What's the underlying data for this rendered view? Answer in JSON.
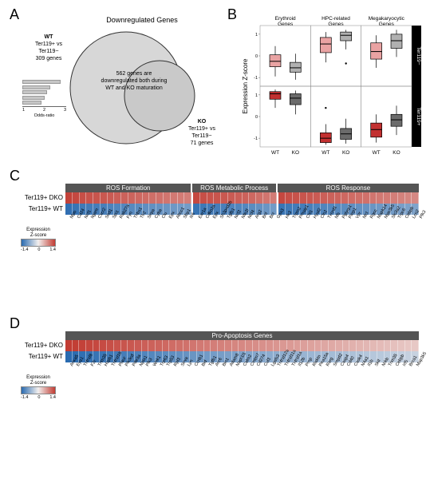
{
  "panelA": {
    "label": "A",
    "title": "Downregulated Genes",
    "left_set": {
      "cond": "WT",
      "comp": "Ter119+ vs\nTer119−",
      "count": "309 genes"
    },
    "right_set": {
      "cond": "KO",
      "comp": "Ter119+ vs\nTer119−",
      "count": "71 genes"
    },
    "intersection": "562 genes\nare downregulated\nboth during WT and KO\nmaturation",
    "odds_label": "Odds-ratio",
    "odds_ticks": [
      "1",
      "2",
      "3"
    ],
    "odds_bars": [
      2.6,
      1.9,
      1.7,
      1.5,
      1.3
    ],
    "venn_fill": "#d7d7d7",
    "bar_fill": "#c6c6c6"
  },
  "panelB": {
    "label": "B",
    "ylab": "Expression Z-score",
    "col_headers": [
      "Erythroid\nGenes",
      "HPC-related\nGenes",
      "Megakaryocytic\nGenes"
    ],
    "row_headers": [
      "Ter119−",
      "Ter119+"
    ],
    "x_ticks": [
      "WT",
      "KO"
    ],
    "y_ticks": [
      "-1",
      "0",
      "1"
    ],
    "colors": {
      "wt_top": "#e9a3a3",
      "ko_top": "#b0b0b0",
      "wt_bot": "#c23030",
      "ko_bot": "#6b6b6b"
    },
    "boxes": [
      [
        {
          "wt": {
            "q1": -0.5,
            "med": -0.25,
            "q3": 0.05,
            "wl": -0.95,
            "wh": 0.45
          },
          "ko": {
            "q1": -0.75,
            "med": -0.55,
            "q3": -0.3,
            "wl": -1.1,
            "wh": 0.1
          }
        },
        {
          "wt": {
            "q1": 0.15,
            "med": 0.55,
            "q3": 0.85,
            "wl": -0.3,
            "wh": 1.1
          },
          "ko": {
            "q1": 0.7,
            "med": 0.95,
            "q3": 1.1,
            "wl": 0.3,
            "wh": 1.2
          }
        },
        {
          "wt": {
            "q1": -0.15,
            "med": 0.2,
            "q3": 0.6,
            "wl": -0.55,
            "wh": 0.95
          },
          "ko": {
            "q1": 0.35,
            "med": 0.7,
            "q3": 1.0,
            "wl": -0.05,
            "wh": 1.2
          }
        }
      ],
      [
        {
          "wt": {
            "q1": 0.8,
            "med": 1.05,
            "q3": 1.15,
            "wl": 0.4,
            "wh": 1.25
          },
          "ko": {
            "q1": 0.55,
            "med": 0.85,
            "q3": 1.05,
            "wl": 0.1,
            "wh": 1.2
          }
        },
        {
          "wt": {
            "q1": -1.2,
            "med": -1.0,
            "q3": -0.75,
            "wl": -1.3,
            "wh": -0.35
          },
          "ko": {
            "q1": -1.05,
            "med": -0.8,
            "q3": -0.55,
            "wl": -1.25,
            "wh": -0.1
          }
        },
        {
          "wt": {
            "q1": -0.95,
            "med": -0.6,
            "q3": -0.3,
            "wl": -1.2,
            "wh": 0.1
          },
          "ko": {
            "q1": -0.45,
            "med": -0.15,
            "q3": 0.1,
            "wl": -0.85,
            "wh": 0.5
          }
        }
      ]
    ],
    "outliers": [
      {
        "row": 1,
        "col": 1,
        "x": "wt",
        "y": 0.4
      },
      {
        "row": 0,
        "col": 1,
        "x": "ko",
        "y": -0.35
      }
    ]
  },
  "panelC": {
    "label": "C",
    "row_labels": [
      "Ter119+ DKO",
      "Ter119+ WT"
    ],
    "sections": [
      {
        "title": "ROS Formation",
        "genes": [
          "Mpo",
          "Cd24",
          "Ncf1",
          "Itgam",
          "Cxcr2",
          "Sod1",
          "Spi1",
          "Rab27a",
          "Fyn",
          "Thbs1",
          "Tlr2",
          "Sirpa",
          "Cyba",
          "Clu",
          "Epx",
          "Abcc1",
          "Sbp1",
          "Ilr6"
        ]
      },
      {
        "title": "ROS Metabolic Process",
        "genes": [
          "Ear1a",
          "Cdkn2a",
          "Epx",
          "Sh3pxd2b",
          "Tgfb1",
          "Ncf2",
          "Nfe2l",
          "Ncf4",
          "Arg2",
          "Bnl",
          "Bcr",
          "Gpx3"
        ]
      },
      {
        "title": "ROS Response",
        "genes": [
          "Hk3",
          "Trpm2",
          "Pmaip1",
          "Chl1",
          "Hyal2",
          "Cln2",
          "Txnrd1",
          "Mb",
          "Pglyrp1",
          "Parp1",
          "Vpr",
          "Mcl",
          "Rgcc",
          "Mapk14",
          "Mpo3k5",
          "Slc3a2",
          "Trpc6",
          "Cebpb",
          "Lcn2",
          "Plk3"
        ]
      }
    ],
    "dko_values": [
      1.35,
      1.3,
      1.25,
      1.22,
      1.2,
      1.18,
      1.15,
      1.12,
      1.1,
      1.08,
      1.05,
      1.02,
      1.0,
      0.98,
      0.95,
      0.92,
      0.9,
      0.88,
      1.3,
      1.25,
      1.22,
      1.2,
      1.18,
      1.15,
      1.12,
      1.1,
      1.05,
      1.0,
      0.95,
      0.9,
      1.3,
      1.25,
      1.22,
      1.2,
      1.18,
      1.15,
      1.12,
      1.1,
      1.08,
      1.05,
      1.02,
      1.0,
      0.98,
      0.95,
      0.92,
      0.9,
      0.88,
      0.85,
      0.82,
      0.8
    ],
    "wt_values": [
      -1.35,
      -1.3,
      -1.25,
      -1.22,
      -1.2,
      -1.18,
      -1.15,
      -1.12,
      -1.1,
      -1.08,
      -1.05,
      -1.02,
      -1.0,
      -0.98,
      -0.95,
      -0.92,
      -0.9,
      -0.88,
      -1.3,
      -1.25,
      -1.22,
      -1.2,
      -1.18,
      -1.15,
      -1.12,
      -1.1,
      -1.05,
      -1.0,
      -0.95,
      -0.9,
      -1.3,
      -1.25,
      -1.22,
      -1.2,
      -1.18,
      -1.15,
      -1.12,
      -1.1,
      -1.08,
      -1.05,
      -1.02,
      -1.0,
      -0.98,
      -0.95,
      -0.92,
      -0.9,
      -0.88,
      -0.85,
      -0.82,
      -0.8
    ],
    "legend": {
      "label": "Expression\nZ-score",
      "min": "-1.4",
      "mid": "0",
      "max": "1.4"
    }
  },
  "panelD": {
    "label": "D",
    "row_labels": [
      "Ter119+ DKO",
      "Ter119+ WT"
    ],
    "header": "Pro-Apoptosis Genes",
    "genes": [
      "Anxa5",
      "Eya1",
      "Tnfrsf8",
      "F2r",
      "Trim35",
      "Hspb1",
      "Tnfrsf1b",
      "Plaur",
      "Pik3cd",
      "Pde3a",
      "Nptx1",
      "Plk3",
      "Wnk1",
      "Trp63",
      "Trp53",
      "Rpl3",
      "Sirva",
      "Lyn",
      "Ccnb1",
      "Bid",
      "Tgfb1",
      "Arc6",
      "Bin1",
      "Adam8",
      "Napr1l1",
      "Calm2",
      "Cmtm7",
      "Cd274",
      "Cul3",
      "Lgals3",
      "Tnfrsf12a",
      "Tnfrsf11a",
      "Tnfrsf1a",
      "Il12b",
      "Prnp",
      "Risktn",
      "Pea15a",
      "Rarg",
      "Smpd2",
      "Casp4",
      "Cd40",
      "Cask4",
      "N4a1",
      "Il1b",
      "Skil",
      "Nrkb",
      "Trim35",
      "Cebpb",
      "Irf5",
      "Brca1",
      "Map3k5"
    ],
    "dko_values": [
      1.4,
      1.38,
      1.35,
      1.32,
      1.3,
      1.28,
      1.25,
      1.22,
      1.2,
      1.18,
      1.15,
      1.12,
      1.1,
      1.08,
      1.05,
      1.02,
      1.0,
      0.98,
      0.95,
      0.92,
      0.9,
      0.88,
      0.86,
      0.84,
      0.82,
      0.8,
      0.78,
      0.76,
      0.74,
      0.72,
      0.7,
      0.68,
      0.66,
      0.64,
      0.62,
      0.6,
      0.58,
      0.56,
      0.54,
      0.52,
      0.5,
      0.48,
      0.46,
      0.44,
      0.42,
      0.4,
      0.38,
      0.36,
      0.34,
      0.32,
      0.3
    ],
    "wt_values": [
      -1.4,
      -1.38,
      -1.35,
      -1.32,
      -1.3,
      -1.28,
      -1.25,
      -1.22,
      -1.2,
      -1.18,
      -1.15,
      -1.12,
      -1.1,
      -1.08,
      -1.05,
      -1.02,
      -1.0,
      -0.98,
      -0.95,
      -0.92,
      -0.9,
      -0.88,
      -0.86,
      -0.84,
      -0.82,
      -0.8,
      -0.78,
      -0.76,
      -0.74,
      -0.72,
      -0.7,
      -0.68,
      -0.66,
      -0.64,
      -0.62,
      -0.6,
      -0.58,
      -0.56,
      -0.54,
      -0.52,
      -0.5,
      -0.48,
      -0.46,
      -0.44,
      -0.42,
      -0.4,
      -0.38,
      -0.36,
      -0.34,
      -0.32,
      -0.3
    ],
    "legend": {
      "label": "Expression\nZ-score",
      "min": "-1.4",
      "mid": "0",
      "max": "1.4"
    }
  },
  "colormap": {
    "neg": "#2a6bb0",
    "zero": "#f2efee",
    "pos": "#c23c33"
  }
}
